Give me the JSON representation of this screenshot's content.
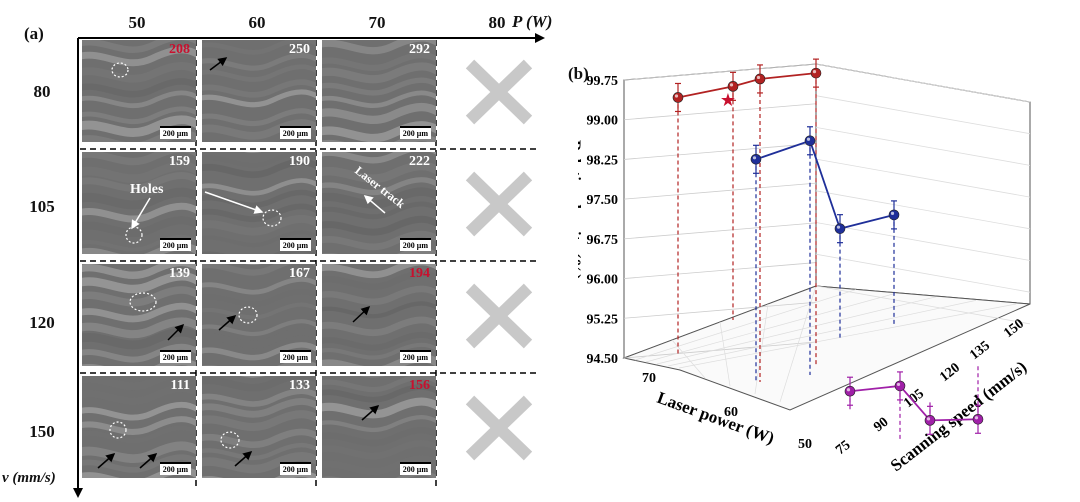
{
  "panel_a": {
    "label": "(a)",
    "x_axis_label": "P (W)",
    "y_axis_label": "v (mm/s)",
    "powers": [
      "50",
      "60",
      "70",
      "80"
    ],
    "speeds": [
      "80",
      "105",
      "120",
      "150"
    ],
    "scale_text": "200 μm",
    "annotations": {
      "holes": "Holes",
      "laser_track": "Laser track"
    },
    "grid": [
      [
        "208",
        "250",
        "292",
        null
      ],
      [
        "159",
        "190",
        "222",
        null
      ],
      [
        "139",
        "167",
        "194",
        null
      ],
      [
        "111",
        "133",
        "156",
        null
      ]
    ],
    "highlight_red": [
      "208",
      "194",
      "156"
    ],
    "highlight_color": "#c8102e"
  },
  "panel_b": {
    "label": "(b)"
  },
  "chart_data": {
    "type": "scatter",
    "projection": "3d",
    "zlabel": "Relative density (%)",
    "xlabel": "Laser power (W)",
    "ylabel": "Scanning speed (mm/s)",
    "z_ticks": [
      "99.75",
      "99.00",
      "98.25",
      "97.50",
      "96.75",
      "96.00",
      "95.25",
      "94.50"
    ],
    "x_ticks": [
      "70",
      "60",
      "50"
    ],
    "y_ticks": [
      "75",
      "90",
      "105",
      "120",
      "135",
      "150"
    ],
    "grid": true,
    "series": [
      {
        "color": "#b22222",
        "marker": "sphere",
        "points": [
          {
            "z": 99.42
          },
          {
            "z": 99.63
          },
          {
            "z": 99.77
          },
          {
            "z": 99.88
          }
        ]
      },
      {
        "color": "#1f2f99",
        "marker": "sphere",
        "points": [
          {
            "z": 98.63
          },
          {
            "z": 98.98
          },
          {
            "z": 97.32
          },
          {
            "z": 97.58
          }
        ]
      },
      {
        "color": "#a020a8",
        "marker": "sphere",
        "points": [
          {
            "z": 95.95
          },
          {
            "z": 96.05
          },
          {
            "z": 95.4
          },
          {
            "z": 95.42
          }
        ]
      }
    ],
    "best_marker": {
      "symbol": "★",
      "color": "#c8102e"
    }
  }
}
